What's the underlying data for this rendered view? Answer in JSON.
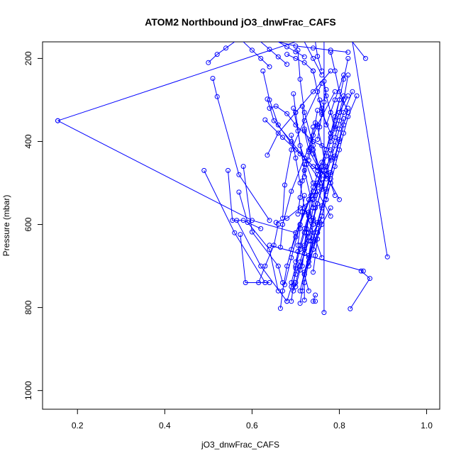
{
  "chart_data": {
    "type": "line",
    "title": "ATOM2 Northbound jO3_dnwFrac_CAFS",
    "xlabel": "jO3_dnwFrac_CAFS",
    "ylabel": "Pressure (mbar)",
    "xlim": [
      0.12,
      1.03
    ],
    "ylim": [
      1045,
      160
    ],
    "y_reversed": true,
    "x_ticks": [
      0.2,
      0.4,
      0.6,
      0.8,
      1.0
    ],
    "x_tick_labels": [
      "0.2",
      "0.4",
      "0.6",
      "0.8",
      "1.0"
    ],
    "y_ticks": [
      200,
      400,
      600,
      800,
      1000
    ],
    "y_tick_labels": [
      "200",
      "400",
      "600",
      "800",
      "1000"
    ],
    "grid": false,
    "series_color": "#0000ff",
    "series": [
      {
        "x": [
          0.69,
          0.7,
          0.71,
          0.72,
          0.73,
          0.74,
          0.75,
          0.76,
          0.77,
          0.78,
          0.79,
          0.8,
          0.81,
          0.82
        ],
        "y": [
          740,
          700,
          660,
          620,
          580,
          540,
          500,
          460,
          420,
          380,
          340,
          300,
          250,
          200
        ]
      },
      {
        "x": [
          0.7,
          0.71,
          0.72,
          0.73,
          0.74,
          0.75,
          0.76,
          0.77,
          0.78,
          0.79,
          0.8,
          0.81,
          0.82
        ],
        "y": [
          750,
          710,
          670,
          630,
          590,
          550,
          510,
          470,
          430,
          390,
          350,
          300,
          240
        ]
      },
      {
        "x": [
          0.71,
          0.72,
          0.73,
          0.74,
          0.75,
          0.76,
          0.77,
          0.78,
          0.79,
          0.8,
          0.81
        ],
        "y": [
          760,
          715,
          675,
          635,
          595,
          555,
          515,
          475,
          435,
          395,
          345
        ]
      },
      {
        "x": [
          0.68,
          0.69,
          0.7,
          0.71,
          0.72,
          0.73,
          0.74,
          0.75,
          0.76,
          0.77,
          0.78,
          0.79,
          0.8,
          0.81,
          0.83
        ],
        "y": [
          785,
          750,
          720,
          690,
          655,
          620,
          585,
          550,
          515,
          480,
          445,
          410,
          370,
          330,
          280
        ]
      },
      {
        "x": [
          0.72,
          0.73,
          0.74,
          0.75,
          0.76,
          0.77,
          0.78,
          0.79,
          0.8,
          0.81,
          0.82
        ],
        "y": [
          720,
          680,
          640,
          600,
          560,
          520,
          480,
          440,
          400,
          360,
          320
        ]
      },
      {
        "x": [
          0.69,
          0.7,
          0.71,
          0.72,
          0.73,
          0.74,
          0.75,
          0.76,
          0.77,
          0.78,
          0.79,
          0.8
        ],
        "y": [
          660,
          630,
          600,
          570,
          540,
          510,
          480,
          450,
          420,
          390,
          350,
          300
        ]
      },
      {
        "x": [
          0.7,
          0.71,
          0.72,
          0.73,
          0.74,
          0.75,
          0.76,
          0.77,
          0.78,
          0.79,
          0.8,
          0.82
        ],
        "y": [
          690,
          650,
          610,
          575,
          540,
          505,
          470,
          435,
          400,
          365,
          330,
          290
        ]
      },
      {
        "x": [
          0.73,
          0.74,
          0.75,
          0.76,
          0.77,
          0.78,
          0.79,
          0.8,
          0.81,
          0.82,
          0.84
        ],
        "y": [
          700,
          660,
          620,
          580,
          540,
          500,
          460,
          420,
          380,
          340,
          290
        ]
      },
      {
        "x": [
          0.155,
          0.7
        ],
        "y": [
          350,
          160
        ]
      },
      {
        "x": [
          0.155,
          0.6,
          0.7
        ],
        "y": [
          350,
          590,
          620
        ]
      },
      {
        "x": [
          0.64,
          0.855
        ],
        "y": [
          650,
          712
        ]
      },
      {
        "x": [
          0.91,
          0.83,
          0.86
        ],
        "y": [
          678,
          160,
          200
        ]
      },
      {
        "x": [
          0.825,
          0.87,
          0.85
        ],
        "y": [
          803,
          730,
          712
        ]
      },
      {
        "x": [
          0.745,
          0.74,
          0.745
        ],
        "y": [
          785,
          785,
          770
        ]
      },
      {
        "x": [
          0.765,
          0.765
        ],
        "y": [
          812,
          160
        ]
      },
      {
        "x": [
          0.49,
          0.56,
          0.63
        ],
        "y": [
          470,
          620,
          740
        ]
      },
      {
        "x": [
          0.51,
          0.52,
          0.57,
          0.64
        ],
        "y": [
          248,
          292,
          480,
          590
        ]
      },
      {
        "x": [
          0.545,
          0.555,
          0.58,
          0.62
        ],
        "y": [
          470,
          590,
          590,
          610
        ]
      },
      {
        "x": [
          0.57,
          0.59,
          0.64,
          0.66
        ],
        "y": [
          522,
          595,
          660,
          760
        ]
      },
      {
        "x": [
          0.58,
          0.6,
          0.66,
          0.67
        ],
        "y": [
          460,
          618,
          700,
          740
        ]
      },
      {
        "x": [
          0.565,
          0.62,
          0.68
        ],
        "y": [
          590,
          700,
          785
        ]
      },
      {
        "x": [
          0.573,
          0.585,
          0.64
        ],
        "y": [
          624,
          740,
          740
        ]
      },
      {
        "x": [
          0.615,
          0.63,
          0.65,
          0.66
        ],
        "y": [
          740,
          700,
          650,
          600
        ]
      },
      {
        "x": [
          0.625,
          0.64,
          0.66,
          0.7,
          0.75
        ],
        "y": [
          230,
          300,
          360,
          420,
          470
        ]
      },
      {
        "x": [
          0.635,
          0.65,
          0.69,
          0.72,
          0.76
        ],
        "y": [
          298,
          350,
          400,
          440,
          500
        ]
      },
      {
        "x": [
          0.63,
          0.67,
          0.71,
          0.74,
          0.78
        ],
        "y": [
          348,
          390,
          430,
          460,
          490
        ]
      },
      {
        "x": [
          0.64,
          0.655,
          0.68,
          0.7,
          0.74,
          0.78
        ],
        "y": [
          320,
          315,
          333,
          360,
          400,
          420
        ]
      },
      {
        "x": [
          0.635,
          0.66,
          0.7,
          0.74,
          0.78
        ],
        "y": [
          433,
          380,
          330,
          280,
          230
        ]
      },
      {
        "x": [
          0.665,
          0.67,
          0.69,
          0.72,
          0.75,
          0.79
        ],
        "y": [
          655,
          600,
          520,
          440,
          360,
          280
        ]
      },
      {
        "x": [
          0.67,
          0.675,
          0.69,
          0.72,
          0.76
        ],
        "y": [
          585,
          505,
          420,
          350,
          260
        ]
      },
      {
        "x": [
          0.675,
          0.69,
          0.71,
          0.74,
          0.78
        ],
        "y": [
          745,
          680,
          600,
          520,
          440
        ]
      },
      {
        "x": [
          0.665,
          0.67,
          0.68,
          0.7,
          0.73,
          0.77
        ],
        "y": [
          802,
          760,
          700,
          620,
          540,
          460
        ]
      },
      {
        "x": [
          0.695,
          0.7,
          0.71,
          0.74,
          0.78
        ],
        "y": [
          285,
          330,
          410,
          500,
          580
        ]
      },
      {
        "x": [
          0.72,
          0.73,
          0.75,
          0.78,
          0.8
        ],
        "y": [
          375,
          420,
          460,
          500,
          540
        ]
      },
      {
        "x": [
          0.74,
          0.75,
          0.76,
          0.78
        ],
        "y": [
          230,
          280,
          330,
          380
        ]
      },
      {
        "x": [
          0.715,
          0.72,
          0.74,
          0.77
        ],
        "y": [
          315,
          370,
          430,
          490
        ]
      },
      {
        "x": [
          0.69,
          0.7,
          0.71,
          0.72,
          0.74,
          0.76
        ],
        "y": [
          385,
          440,
          500,
          560,
          620,
          680
        ]
      },
      {
        "x": [
          0.705,
          0.71,
          0.72,
          0.74,
          0.76
        ],
        "y": [
          180,
          250,
          330,
          410,
          490
        ]
      },
      {
        "x": [
          0.655,
          0.68,
          0.71,
          0.74
        ],
        "y": [
          595,
          585,
          560,
          540
        ]
      },
      {
        "x": [
          0.72,
          0.72,
          0.73,
          0.74
        ],
        "y": [
          782,
          740,
          690,
          640
        ]
      },
      {
        "x": [
          0.71,
          0.715,
          0.72,
          0.74,
          0.76
        ],
        "y": [
          790,
          760,
          720,
          660,
          600
        ]
      },
      {
        "x": [
          0.73,
          0.72,
          0.73,
          0.75,
          0.78
        ],
        "y": [
          760,
          720,
          680,
          620,
          560
        ]
      },
      {
        "x": [
          0.695,
          0.7,
          0.71,
          0.73,
          0.76
        ],
        "y": [
          760,
          740,
          700,
          640,
          580
        ]
      },
      {
        "x": [
          0.755,
          0.76,
          0.77,
          0.79,
          0.81
        ],
        "y": [
          300,
          320,
          360,
          300,
          240
        ]
      },
      {
        "x": [
          0.765,
          0.77,
          0.78,
          0.79,
          0.8,
          0.81
        ],
        "y": [
          255,
          290,
          330,
          370,
          330,
          290
        ]
      },
      {
        "x": [
          0.75,
          0.76,
          0.77,
          0.79
        ],
        "y": [
          365,
          410,
          470,
          530
        ]
      },
      {
        "x": [
          0.74,
          0.75,
          0.76,
          0.77
        ],
        "y": [
          420,
          460,
          500,
          540
        ]
      },
      {
        "x": [
          0.78,
          0.79,
          0.8,
          0.82
        ],
        "y": [
          185,
          230,
          280,
          330
        ]
      },
      {
        "x": [
          0.695,
          0.705,
          0.72,
          0.74
        ],
        "y": [
          320,
          375,
          470,
          560
        ]
      },
      {
        "x": [
          0.735,
          0.74,
          0.745,
          0.75
        ],
        "y": [
          590,
          560,
          530,
          500
        ]
      },
      {
        "x": [
          0.73,
          0.735,
          0.74,
          0.745,
          0.75
        ],
        "y": [
          675,
          640,
          600,
          560,
          520
        ]
      },
      {
        "x": [
          0.72,
          0.725,
          0.73,
          0.735
        ],
        "y": [
          650,
          610,
          570,
          530
        ]
      },
      {
        "x": [
          0.705,
          0.71,
          0.715,
          0.72
        ],
        "y": [
          650,
          610,
          570,
          530
        ]
      },
      {
        "x": [
          0.715,
          0.72,
          0.725,
          0.73
        ],
        "y": [
          700,
          660,
          620,
          580
        ]
      },
      {
        "x": [
          0.69,
          0.695,
          0.7,
          0.705
        ],
        "y": [
          785,
          745,
          705,
          665
        ]
      },
      {
        "x": [
          0.74,
          0.745,
          0.75,
          0.755
        ],
        "y": [
          715,
          675,
          635,
          595
        ]
      },
      {
        "x": [
          0.705,
          0.71,
          0.715,
          0.72
        ],
        "y": [
          575,
          535,
          495,
          455
        ]
      },
      {
        "x": [
          0.73,
          0.735,
          0.74,
          0.745,
          0.75
        ],
        "y": [
          445,
          415,
          385,
          355,
          325
        ]
      },
      {
        "x": [
          0.75,
          0.755,
          0.76,
          0.765,
          0.77
        ],
        "y": [
          395,
          365,
          335,
          305,
          275
        ]
      },
      {
        "x": [
          0.72,
          0.725,
          0.73,
          0.735,
          0.74
        ],
        "y": [
          485,
          455,
          425,
          395,
          365
        ]
      },
      {
        "x": [
          0.66,
          0.7,
          0.74,
          0.78,
          0.82
        ],
        "y": [
          160,
          170,
          175,
          180,
          185
        ]
      },
      {
        "x": [
          0.58,
          0.6,
          0.62,
          0.64
        ],
        "y": [
          160,
          180,
          200,
          220
        ]
      },
      {
        "x": [
          0.62,
          0.64,
          0.66,
          0.68
        ],
        "y": [
          160,
          178,
          196,
          214
        ]
      },
      {
        "x": [
          0.66,
          0.68,
          0.7,
          0.72
        ],
        "y": [
          160,
          172,
          184,
          196
        ]
      },
      {
        "x": [
          0.5,
          0.52,
          0.54,
          0.56
        ],
        "y": [
          210,
          190,
          175,
          160
        ]
      },
      {
        "x": [
          0.72,
          0.74,
          0.76
        ],
        "y": [
          160,
          200,
          240
        ]
      },
      {
        "x": [
          0.745,
          0.75,
          0.76
        ],
        "y": [
          160,
          195,
          230
        ]
      },
      {
        "x": [
          0.68,
          0.7,
          0.72,
          0.74
        ],
        "y": [
          190,
          200,
          210,
          230
        ]
      }
    ]
  }
}
